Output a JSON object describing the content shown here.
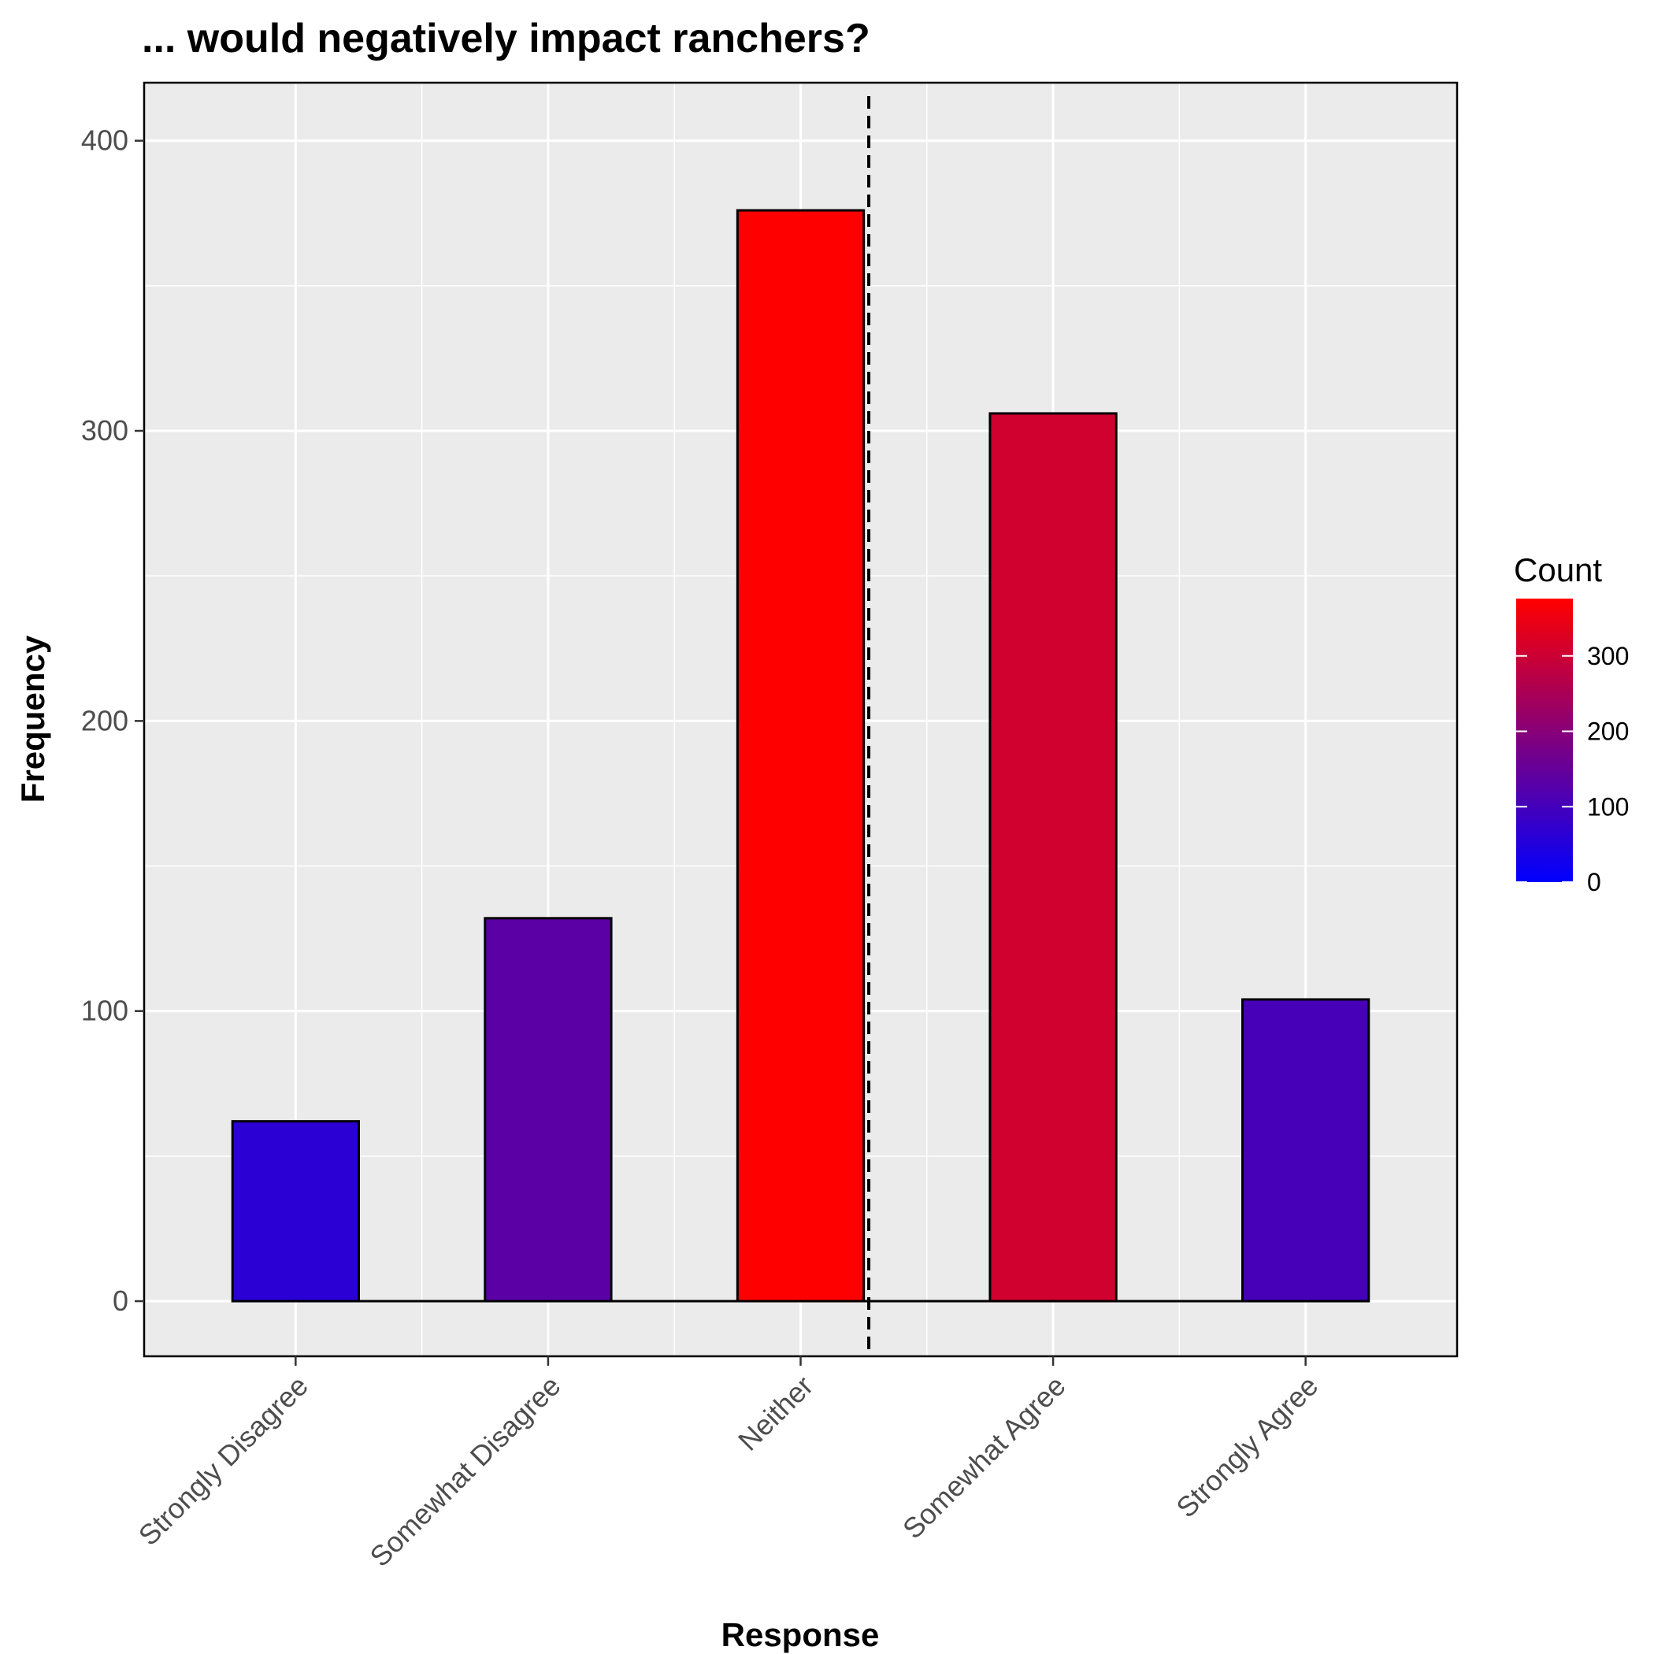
{
  "chart_data": {
    "type": "bar",
    "title": "... would negatively impact ranchers?",
    "xlabel": "Response",
    "ylabel": "Frequency",
    "categories": [
      "Strongly Disagree",
      "Somewhat Disagree",
      "Neither",
      "Somewhat Agree",
      "Strongly Agree"
    ],
    "values": [
      62,
      132,
      376,
      306,
      104
    ],
    "ylim": [
      -19,
      420
    ],
    "yticks": [
      0,
      100,
      200,
      300,
      400
    ],
    "grid": true,
    "reference_line": {
      "x_position": "between Neither and Somewhat Agree",
      "x_value": 3.27,
      "style": "dashed",
      "color": "#000000"
    },
    "fill_scale": {
      "low": "#0000FF",
      "high": "#FF0000",
      "min": 0,
      "max": 376
    },
    "legend": {
      "title": "Count",
      "position": "right",
      "ticks": [
        0,
        100,
        200,
        300
      ]
    },
    "colors": {
      "panel_background": "#EBEBEB",
      "grid": "#FFFFFF",
      "bar_outline": "#000000"
    }
  }
}
